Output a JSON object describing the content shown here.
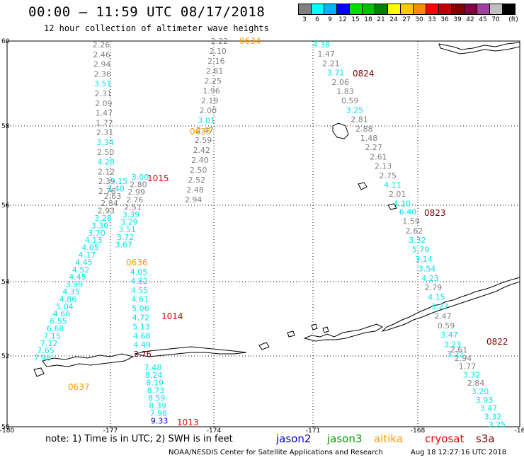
{
  "header": {
    "title": "00:00 – 11:59 UTC 08/17/2018",
    "subtitle": "12 hour collection of altimeter wave heights"
  },
  "colorbar": {
    "colors": [
      "#808080",
      "#00ffff",
      "#00b4ff",
      "#0000ff",
      "#00e000",
      "#00c000",
      "#008000",
      "#ffff00",
      "#ffc800",
      "#ff8c00",
      "#ff0000",
      "#c00000",
      "#800000",
      "#800040",
      "#a040a0",
      "#c0c0c0",
      "#000000"
    ],
    "labels": [
      "3",
      "6",
      "9",
      "12",
      "15",
      "18",
      "21",
      "24",
      "27",
      "30",
      "33",
      "36",
      "39",
      "42",
      "45",
      "70"
    ],
    "unit": "(ft)"
  },
  "axes": {
    "lat_labels": [
      "60",
      "58",
      "56",
      "54",
      "52",
      "50"
    ],
    "lon_labels": [
      "-180",
      "-177",
      "-174",
      "-171",
      "-168",
      "-16"
    ]
  },
  "track_colors": {
    "gray": "#808080",
    "cyan": "#00e5ee",
    "orange": "#ff9900",
    "red": "#e00000",
    "maroon": "#800000",
    "blue": "#0000cc"
  },
  "tracks": [
    {
      "name": "track-0634",
      "time_label": "0634",
      "time_color": "orange",
      "readings": [
        {
          "v": "2.22",
          "c": "gray"
        },
        {
          "v": "2.10",
          "c": "gray"
        },
        {
          "v": "2.16",
          "c": "gray"
        },
        {
          "v": "2.61",
          "c": "gray"
        },
        {
          "v": "2.25",
          "c": "gray"
        },
        {
          "v": "1.96",
          "c": "gray"
        },
        {
          "v": "2.19",
          "c": "gray"
        },
        {
          "v": "2.00",
          "c": "gray"
        },
        {
          "v": "3.01",
          "c": "cyan"
        },
        {
          "v": "2.47",
          "c": "gray"
        },
        {
          "v": "2.59",
          "c": "gray"
        },
        {
          "v": "2.42",
          "c": "gray"
        },
        {
          "v": "2.40",
          "c": "gray"
        },
        {
          "v": "2.50",
          "c": "gray"
        },
        {
          "v": "2.52",
          "c": "gray"
        },
        {
          "v": "2.48",
          "c": "gray"
        },
        {
          "v": "2.94",
          "c": "gray"
        },
        {
          "v": "3.00",
          "c": "cyan"
        },
        {
          "v": "2.80",
          "c": "gray"
        },
        {
          "v": "2.99",
          "c": "gray"
        },
        {
          "v": "2.76",
          "c": "gray"
        },
        {
          "v": "2.51",
          "c": "gray"
        },
        {
          "v": "3.39",
          "c": "cyan"
        },
        {
          "v": "3.29",
          "c": "cyan"
        },
        {
          "v": "3.51",
          "c": "cyan"
        },
        {
          "v": "3.72",
          "c": "cyan"
        },
        {
          "v": "3.67",
          "c": "cyan"
        }
      ]
    },
    {
      "name": "track-0635",
      "time_label": "0635",
      "time_color": "orange",
      "readings": [
        {
          "v": "2.26",
          "c": "gray"
        },
        {
          "v": "2.46",
          "c": "gray"
        },
        {
          "v": "2.94",
          "c": "gray"
        },
        {
          "v": "2.36",
          "c": "gray"
        },
        {
          "v": "3.51",
          "c": "cyan"
        },
        {
          "v": "2.31",
          "c": "gray"
        },
        {
          "v": "2.09",
          "c": "gray"
        },
        {
          "v": "1.47",
          "c": "gray"
        },
        {
          "v": "1.77",
          "c": "gray"
        },
        {
          "v": "2.31",
          "c": "gray"
        },
        {
          "v": "3.34",
          "c": "cyan"
        },
        {
          "v": "2.50",
          "c": "gray"
        },
        {
          "v": "4.28",
          "c": "cyan"
        },
        {
          "v": "2.12",
          "c": "gray"
        },
        {
          "v": "2.39",
          "c": "gray"
        },
        {
          "v": "2.76",
          "c": "gray"
        },
        {
          "v": "3.15",
          "c": "cyan"
        },
        {
          "v": "3.40",
          "c": "cyan"
        },
        {
          "v": "2.63",
          "c": "gray"
        },
        {
          "v": "2.84",
          "c": "gray"
        },
        {
          "v": "2.93",
          "c": "gray"
        },
        {
          "v": "3.28",
          "c": "cyan"
        },
        {
          "v": "3.30",
          "c": "cyan"
        },
        {
          "v": "3.70",
          "c": "cyan"
        },
        {
          "v": "4.13",
          "c": "cyan"
        },
        {
          "v": "4.05",
          "c": "cyan"
        },
        {
          "v": "4.17",
          "c": "cyan"
        },
        {
          "v": "4.45",
          "c": "cyan"
        },
        {
          "v": "4.52",
          "c": "cyan"
        },
        {
          "v": "4.45",
          "c": "cyan"
        },
        {
          "v": "3.99",
          "c": "cyan"
        },
        {
          "v": "4.35",
          "c": "cyan"
        },
        {
          "v": "4.86",
          "c": "cyan"
        },
        {
          "v": "5.04",
          "c": "cyan"
        },
        {
          "v": "4.66",
          "c": "cyan"
        },
        {
          "v": "6.55",
          "c": "cyan"
        },
        {
          "v": "6.68",
          "c": "cyan"
        },
        {
          "v": "7.15",
          "c": "cyan"
        },
        {
          "v": "7.12",
          "c": "cyan"
        },
        {
          "v": "7.65",
          "c": "cyan"
        },
        {
          "v": "7.98",
          "c": "cyan"
        }
      ]
    },
    {
      "name": "track-1015",
      "time_label": "1015",
      "time_color": "red",
      "readings": []
    },
    {
      "name": "track-0636",
      "time_label": "0636",
      "time_color": "orange",
      "readings": []
    },
    {
      "name": "track-1014",
      "time_label": "1014",
      "time_color": "red",
      "readings": [
        {
          "v": "4.05",
          "c": "cyan"
        },
        {
          "v": "4.82",
          "c": "cyan"
        },
        {
          "v": "4.55",
          "c": "cyan"
        },
        {
          "v": "4.61",
          "c": "cyan"
        },
        {
          "v": "5.06",
          "c": "cyan"
        },
        {
          "v": "4.72",
          "c": "cyan"
        },
        {
          "v": "5.13",
          "c": "cyan"
        },
        {
          "v": "4.68",
          "c": "cyan"
        },
        {
          "v": "4.49",
          "c": "cyan"
        },
        {
          "v": "2.76",
          "c": "maroon"
        }
      ]
    },
    {
      "name": "track-0637",
      "time_label": "0637",
      "time_color": "orange",
      "readings": []
    },
    {
      "name": "track-1013",
      "time_label": "1013",
      "time_color": "red",
      "readings": [
        {
          "v": "7.48",
          "c": "cyan"
        },
        {
          "v": "8.24",
          "c": "cyan"
        },
        {
          "v": "8.19",
          "c": "cyan"
        },
        {
          "v": "8.73",
          "c": "cyan"
        },
        {
          "v": "8.59",
          "c": "cyan"
        },
        {
          "v": "8.39",
          "c": "cyan"
        },
        {
          "v": "7.98",
          "c": "cyan"
        },
        {
          "v": "9.33",
          "c": "blue"
        }
      ]
    },
    {
      "name": "track-0824",
      "time_label": "0824",
      "time_color": "maroon",
      "readings": [
        {
          "v": "4.38",
          "c": "cyan"
        },
        {
          "v": "1.47",
          "c": "gray"
        },
        {
          "v": "2.21",
          "c": "gray"
        },
        {
          "v": "3.71",
          "c": "cyan"
        },
        {
          "v": "2.06",
          "c": "gray"
        },
        {
          "v": "1.83",
          "c": "gray"
        },
        {
          "v": "0.59",
          "c": "gray"
        },
        {
          "v": "3.25",
          "c": "cyan"
        },
        {
          "v": "2.81",
          "c": "gray"
        },
        {
          "v": "2.88",
          "c": "gray"
        },
        {
          "v": "1.48",
          "c": "gray"
        },
        {
          "v": "2.27",
          "c": "gray"
        },
        {
          "v": "2.61",
          "c": "gray"
        },
        {
          "v": "2.13",
          "c": "gray"
        },
        {
          "v": "2.75",
          "c": "gray"
        },
        {
          "v": "4.11",
          "c": "cyan"
        },
        {
          "v": "2.01",
          "c": "gray"
        },
        {
          "v": "4.10",
          "c": "cyan"
        }
      ]
    },
    {
      "name": "track-0823",
      "time_label": "0823",
      "time_color": "maroon",
      "readings": [
        {
          "v": "6.40",
          "c": "cyan"
        },
        {
          "v": "1.59",
          "c": "gray"
        },
        {
          "v": "2.62",
          "c": "gray"
        },
        {
          "v": "3.32",
          "c": "cyan"
        },
        {
          "v": "5.79",
          "c": "cyan"
        },
        {
          "v": "3.14",
          "c": "cyan"
        },
        {
          "v": "3.54",
          "c": "cyan"
        },
        {
          "v": "4.23",
          "c": "cyan"
        },
        {
          "v": "2.79",
          "c": "gray"
        },
        {
          "v": "4.15",
          "c": "cyan"
        },
        {
          "v": "3.27",
          "c": "cyan"
        },
        {
          "v": "2.47",
          "c": "gray"
        },
        {
          "v": "0.59",
          "c": "gray"
        },
        {
          "v": "3.47",
          "c": "cyan"
        },
        {
          "v": "3.23",
          "c": "cyan"
        },
        {
          "v": "3.21",
          "c": "cyan"
        }
      ]
    },
    {
      "name": "track-0822",
      "time_label": "0822",
      "time_color": "maroon",
      "readings": [
        {
          "v": "2.61",
          "c": "gray"
        },
        {
          "v": "2.94",
          "c": "gray"
        },
        {
          "v": "1.77",
          "c": "gray"
        },
        {
          "v": "3.32",
          "c": "cyan"
        },
        {
          "v": "2.84",
          "c": "gray"
        },
        {
          "v": "3.20",
          "c": "cyan"
        },
        {
          "v": "3.93",
          "c": "cyan"
        },
        {
          "v": "3.47",
          "c": "cyan"
        },
        {
          "v": "3.32",
          "c": "cyan"
        },
        {
          "v": "3.25",
          "c": "cyan"
        }
      ]
    }
  ],
  "footer": {
    "note": "note: 1) Time is in UTC; 2) SWH is in feet",
    "legend": [
      {
        "label": "jason2",
        "color": "#0000cc"
      },
      {
        "label": "jason3",
        "color": "#00a000"
      },
      {
        "label": "altika",
        "color": "#ff9900"
      },
      {
        "label": "cryosat",
        "color": "#e00000"
      },
      {
        "label": "s3a",
        "color": "#800000"
      }
    ],
    "credit": "NOAA/NESDIS Center for Satellite Applications and Research",
    "stamp": "Aug 18 12:27:16 UTC 2018"
  }
}
